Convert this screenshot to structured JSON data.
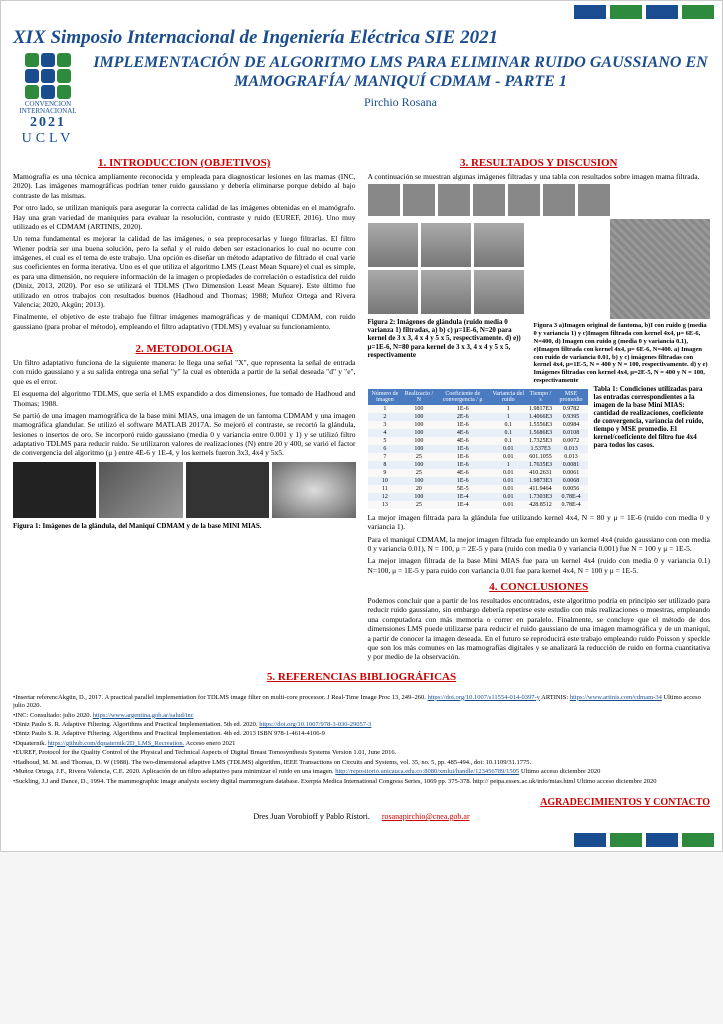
{
  "header": {
    "conf": "XIX Simposio Internacional de Ingeniería  Eléctrica SIE 2021",
    "logo_sub": "CONVENCION INTERNACIONAL",
    "logo_year": "2021",
    "logo_uclv": "UCLV",
    "title": "IMPLEMENTACIÓN DE ALGORITMO LMS PARA ELIMINAR RUIDO GAUSSIANO EN MAMOGRAFÍA/ MANIQUÍ CDMAM - PARTE 1",
    "author": "Pirchio Rosana"
  },
  "sections": {
    "intro": "1. INTRODUCCION (OBJETIVOS)",
    "method": "2. METODOLOGIA",
    "results": "3. RESULTADOS Y DISCUSION",
    "concl": "4. CONCLUSIONES",
    "refs": "5. REFERENCIAS BIBLIOGRÁFICAS",
    "ack": "AGRADECIMIENTOS  Y CONTACTO"
  },
  "intro": {
    "p1": "Mamografía es una técnica ampliamente reconocida y empleada para diagnosticar lesiones en las mamas (INC, 2020). Las imágenes mamográficas podrían tener ruido gaussiano y debería eliminarse porque debido al bajo contraste de las mismas.",
    "p2": "Por otro lado, se utilizan maniquís para asegurar la correcta calidad de las imágenes obtenidas en el mamógrafo. Hay una gran variedad de maniquíes para evaluar la resolución, contraste y ruido (EUREF, 2016). Uno muy utilizado es el CDMAM (ARTINIS, 2020).",
    "p3": "Un tema fundamental es mejorar la calidad de las imágenes, o sea preprocesarlas y luego filtrarlas. El filtro Wiener podría ser una buena solución, pero la señal y el ruido deben ser estacionarios lo cual no ocurre con imágenes, el cual es el tema de este trabajo. Una opción es diseñar un método adaptativo de filtrado el cual varíe sus coeficientes en forma iterativa. Uno es el que utiliza el algoritmo LMS (Least Mean Square) el cual es simple, es para una dimensión, no requiere información de la imagen o propiedades de correlación o estadística del ruido (Diniz, 2013, 2020). Por eso se utilizará el TDLMS (Two Dimension Least Mean Square). Este último fue utilizado en otros trabajos con resultados buenos (Hadhoud and Thomas; 1988; Muñoz Ortega and Rivera Valencia; 2020, Akgün; 2013).",
    "p4": "Finalmente, el objetivo de este trabajo fue filtrar imágenes mamográficas y de maniquí CDMAM, con ruido gaussiano (para probar el método), empleando el filtro adaptativo (TDLMS) y evaluar su funcionamiento."
  },
  "method": {
    "p1": "Un filtro adaptativo funciona de la siguiente manera: le llega una señal \"X\", que representa la señal de entrada con ruido gaussiano y a su salida entrega una señal \"y\" la cual es obtenida a partir de la señal deseada \"d\" y \"e\", que es el error.",
    "p2": "El esquema del algoritmo TDLMS, que sería el LMS expandido a dos dimensiones, fue tomado de Hadhoud and Thomas; 1988.",
    "p3": "Se partió de una imagen mamográfica de la base mini MIAS, una imagen de un fantoma CDMAM y una imagen mamográfica glandular. Se utilizó el software MATLAB 2017A. Se mejoró el contraste, se recortó la glándula, lesiones o insertos de oro. Se incorporó ruido gaussiano (media 0 y variancia entre 0.001 y 1) y se utilizó filtro adaptativo TDLMS para reducir ruido. Se utilizaron valores de realizaciones (N) entre 20 y 400, se varió el factor de convergencia del algoritmo (μ ) entre 4E-6 y 1E-4, y los kernels fueron 3x3, 4x4 y 5x5.",
    "fig1cap": "Figura 1: Imágenes de la glándula, del Maniquí CDMAM y de la base MINI MIAS."
  },
  "results": {
    "p1": "A continuación se muestran algunas imágenes filtradas y una tabla con resultados sobre imagen mama filtrada.",
    "fig2cap": "Figura 2: Imágenes de glándula (ruido media 0 varianza 1) filtradas, a) b) c) μ=1E-6, N=20 para kernel de 3 x 3, 4 x 4 y 5 x 5, respectivamente. d) e)) μ=1E-6, N=80 para kernel de 3 x 3, 4 x 4 y 5 x 5, respectivamente",
    "fig3cap": "Figura 3 a)Imagen original de fantoma, b)I con ruido g (media 0 y variancia 1) y c)Imagen filtrada con kernel 4x4, μ= 6E-6, N=400, d) Imagen con ruido g (media 0 y variancia 0.1), e)Imagen filtrada con kernel 4x4, μ= 6E-6, N=400.\na) Imagen con ruido de variancia 0.01, b) y c) imágenes filtradas con kernel 4x4, μ=1E-5, N = 400 y N = 100, respectivamente. d) y e) Imágenes filtradas con kernel 4x4, μ=2E-5, N = 400 y N = 100, respectivamente",
    "tablecap": "Tabla 1: Condiciones utilizadas para las entradas correspondientes a la imagen de la base Mini MIAS: cantidad de realizaciones, coeficiente de convergencia, variancia del ruido, tiempo y MSE promedio. El kernel/coeficiente del filtro fue 4x4 para todos los casos.",
    "p2": "La mejor imagen filtrada para la glándula fue utilizando kernel 4x4, N = 80 y μ = 1E-6 (ruido con media 0 y variancia 1).",
    "p3": "Para el maniquí CDMAM, la mejor imagen filtrada fue empleando un kernel 4x4 (ruido gaussiano con con media 0 y variancia 0.01), N = 100, μ = 2E-5 y para (ruido con media 0 y variancia 0.001) fue N = 100 y μ = 1E-5.",
    "p4": "La mejor imagen filtrada de la base Mini MIAS fue para un kernel 4x4 (ruido con media 0 y variancia 0.1) N=100, μ = 1E-5 y para ruido con variancia 0.01 fue para kernel 4x4, N = 100 y μ = 1E-5."
  },
  "table": {
    "headers": [
      "Número de imagen",
      "Realizacio / N",
      "Coeficiente de convergencia / μ",
      "Variancia del ruido",
      "Tiempo / s",
      "MSE promedio"
    ],
    "rows": [
      [
        "1",
        "100",
        "1E-6",
        "1",
        "1.9817E3",
        "0.9782"
      ],
      [
        "2",
        "100",
        "2E-6",
        "1",
        "1.4066E3",
        "0.9395"
      ],
      [
        "3",
        "100",
        "1E-6",
        "0.1",
        "1.5556E3",
        "0.0984"
      ],
      [
        "4",
        "100",
        "4E-6",
        "0.1",
        "1.5686E3",
        "0.0108"
      ],
      [
        "5",
        "100",
        "4E-6",
        "0.1",
        "1.7325E3",
        "0.0072"
      ],
      [
        "6",
        "100",
        "1E-6",
        "0.01",
        "1.537E3",
        "0.013"
      ],
      [
        "7",
        "25",
        "1E-6",
        "0.01",
        "601.1055",
        "0.013"
      ],
      [
        "8",
        "100",
        "1E-6",
        "1",
        "1.7635E3",
        "0.0081"
      ],
      [
        "9",
        "25",
        "4E-6",
        "0.01",
        "410.2631",
        "0.0061"
      ],
      [
        "10",
        "100",
        "1E-6",
        "0.01",
        "1.9873E3",
        "0.0068"
      ],
      [
        "11",
        "20",
        "5E-5",
        "0.01",
        "411.9464",
        "0.0056"
      ],
      [
        "12",
        "100",
        "1E-4",
        "0.01",
        "1.7303E3",
        "0.78E-4"
      ],
      [
        "13",
        "25",
        "1E-4",
        "0.01",
        "428.8512",
        "0.78E-4"
      ]
    ]
  },
  "concl": {
    "p1": "Podemos concluir que a partir de los resultados encontrados, este algoritmo podría en principio ser utilizado para reducir ruido gaussiano, sin embargo debería repetirse este estudio con más realizaciones o muestras, empleando una computadora con más memoria o correr en paralelo. Finalmente, se concluye que el método de dos dimensiones LMS puede utilizarse para reducir el ruido gaussiano de una imagen mamográfica y de un maniquí, a partir de conocer la imagen deseada. En el futuro se reproducirá este trabajo empleando ruido Poisson y speckle que son los más comunes en las mamografías digitales y se analizará la reducción de ruido en forma cuantitativa y por medio de la observación."
  },
  "refs": [
    "•Insertar referencAkgün, D., 2017. A practical parallel implementation for TDLMS image filter on multi-core processor. J Real-Time Image Proc 13, 249–260. https://doi.org/10.1007/s11554-014-0397-y  ARTINIS: https://www.artinis.com/cdmam-34 Ultimo acceso julio 2020.",
    "•INC: Consultado: julio 2020. https://www.argentina.gob.ar/salud/inc",
    "•Diniz Paulo S. R. Adaptive Filtering. Algorithms and Practical Implementation.  5th ed. 2020.  https://doi.org/10.1007/978-3-030-29057-3",
    "•Diniz Paulo S. R. Adaptive Filtering. Algorithms and Practical Implementation. 4th ed. 2013 ISBN 978-1-4614-4106-9",
    "•Dquaternik. https://github.com/dquaternik/2D_LMS_Recreation. Acceso enero 2021",
    "•EUREF, Protocol for the Quality Control of the Physical and Technical Aspects of Digital Breast Tomosynthesis Systems Version 1.01, June 2016.",
    "•Hadhoud, M. M. and Thomas, D. W (1988). The two-dimensional adaptive LMS (TDLMS) algorithm, IEEE Transactions on Circuits and Systems, vol. 35, no. 5, pp. 485-494., doi: 10.1109/31.1775.",
    "•Muñoz Ortega, J.F., Rivera Valencia, C.E. 2020. Aplicación de un filtro adaptativo para minimizar el ruido en una imagen. http://repositorio.unicauca.edu.co:8080/xmlui/handle/123456789/1505 Ultimo acceso diciembre 2020",
    "•Suckling, J.J and Dance, D., 1994. The mammographic image analysis society digital mammogram database. Exerpta Medica International Congress Series, 1069 pp. 375-378. http:// peipa.essex.ac.uk/info/mias.html Ultimo acceso diciembre 2020"
  ],
  "ack": {
    "names": "Dres Juan Vorobioff y Pablo Ristori.",
    "email": "rosanapirchio@cnea.gob.ar"
  }
}
